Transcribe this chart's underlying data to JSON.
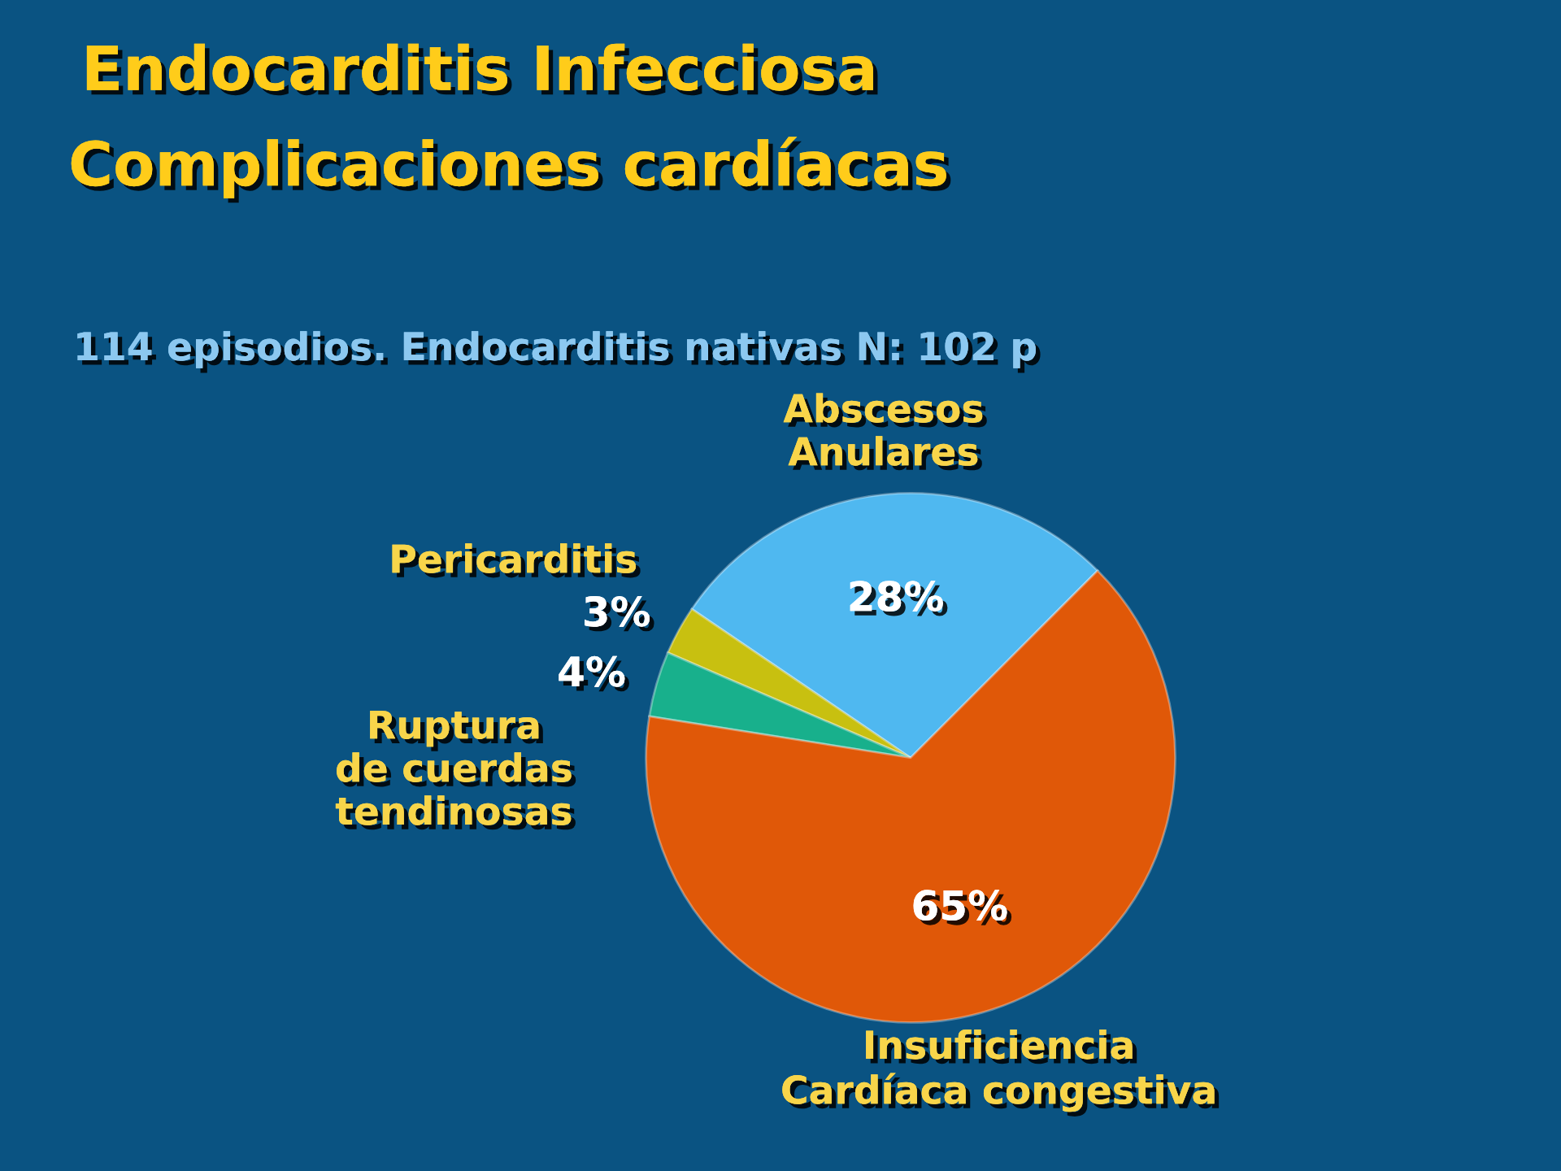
{
  "chart_data": {
    "type": "pie",
    "title": "Endocarditis Infecciosa",
    "subtitle": "Complicaciones cardíacas",
    "annotations": [
      "114 episodios. Endocarditis nativas N: 102 p"
    ],
    "categories": [
      "Abscesos\nAnulares",
      "Pericarditis",
      "Ruptura\nde cuerdas\ntendinosas",
      "Insuficiencia\nCardíaca congestiva"
    ],
    "values": [
      28,
      3,
      4,
      65
    ],
    "colors": [
      "#4fb8f0",
      "#c8c010",
      "#18b08c",
      "#e05808"
    ],
    "value_labels": [
      "28%",
      "3%",
      "4%",
      "65%"
    ]
  }
}
